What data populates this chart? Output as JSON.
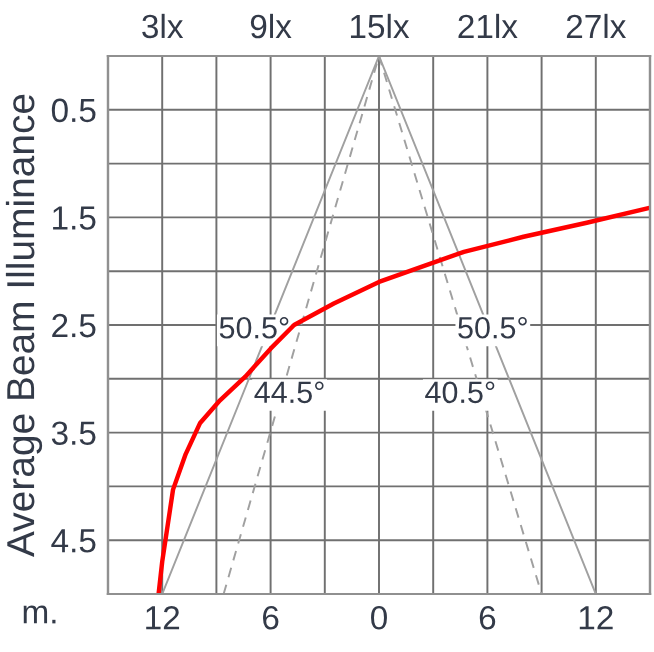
{
  "chart_data": {
    "type": "line",
    "xlabel": "m.",
    "ylabel": "Average Beam Illuminance",
    "xlim": [
      -15,
      15
    ],
    "xticks": [
      {
        "value": -15,
        "label": null
      },
      {
        "value": -12,
        "label": "12"
      },
      {
        "value": -9,
        "label": null
      },
      {
        "value": -6,
        "label": "6"
      },
      {
        "value": -3,
        "label": null
      },
      0,
      {
        "value": 3,
        "label": null
      },
      {
        "value": 6,
        "label": "6"
      },
      {
        "value": 9,
        "label": null
      },
      {
        "value": 12,
        "label": "12"
      },
      {
        "value": 15,
        "label": null
      }
    ],
    "x2lim": [
      0,
      30
    ],
    "x2ticks": [
      {
        "value": 3,
        "label": "3lx"
      },
      {
        "value": 9,
        "label": "9lx"
      },
      {
        "value": 15,
        "label": "15lx"
      },
      {
        "value": 21,
        "label": "21lx"
      },
      {
        "value": 27,
        "label": "27lx"
      }
    ],
    "ylim": [
      5,
      0
    ],
    "yticks": [
      {
        "value": 0,
        "label": null
      },
      0.5,
      {
        "value": 1,
        "label": null
      },
      1.5,
      {
        "value": 2,
        "label": null
      },
      2.5,
      {
        "value": 3,
        "label": null
      },
      3.5,
      {
        "value": 4,
        "label": null
      },
      4.5,
      {
        "value": 5,
        "label": null
      }
    ],
    "grid": true,
    "marker": "none",
    "series": [
      {
        "axis": "x2",
        "color": "#ff0000",
        "line_style": "solid",
        "x": [
          2.8,
          3.0,
          3.6,
          4.3,
          5.1,
          6.2,
          7.6,
          9.0,
          10.3,
          12.5,
          15,
          17.5,
          19.7,
          23,
          26.5,
          30
        ],
        "values": [
          5.0,
          4.7,
          4.03,
          3.7,
          3.41,
          3.2,
          2.98,
          2.72,
          2.5,
          2.3,
          2.1,
          1.95,
          1.82,
          1.68,
          1.55,
          1.41
        ]
      },
      {
        "color": "#a0a0a0",
        "line_style": "solid",
        "x": [
          -12,
          0,
          12
        ],
        "values": [
          5,
          0,
          5
        ]
      },
      {
        "color": "#a0a0a0",
        "line_style": "dashed",
        "x": [
          -8.6,
          0,
          9.0
        ],
        "values": [
          5,
          0,
          5
        ]
      }
    ],
    "annotations": [
      "50.5°",
      "50.5°",
      "44.5°",
      "40.5°"
    ]
  }
}
